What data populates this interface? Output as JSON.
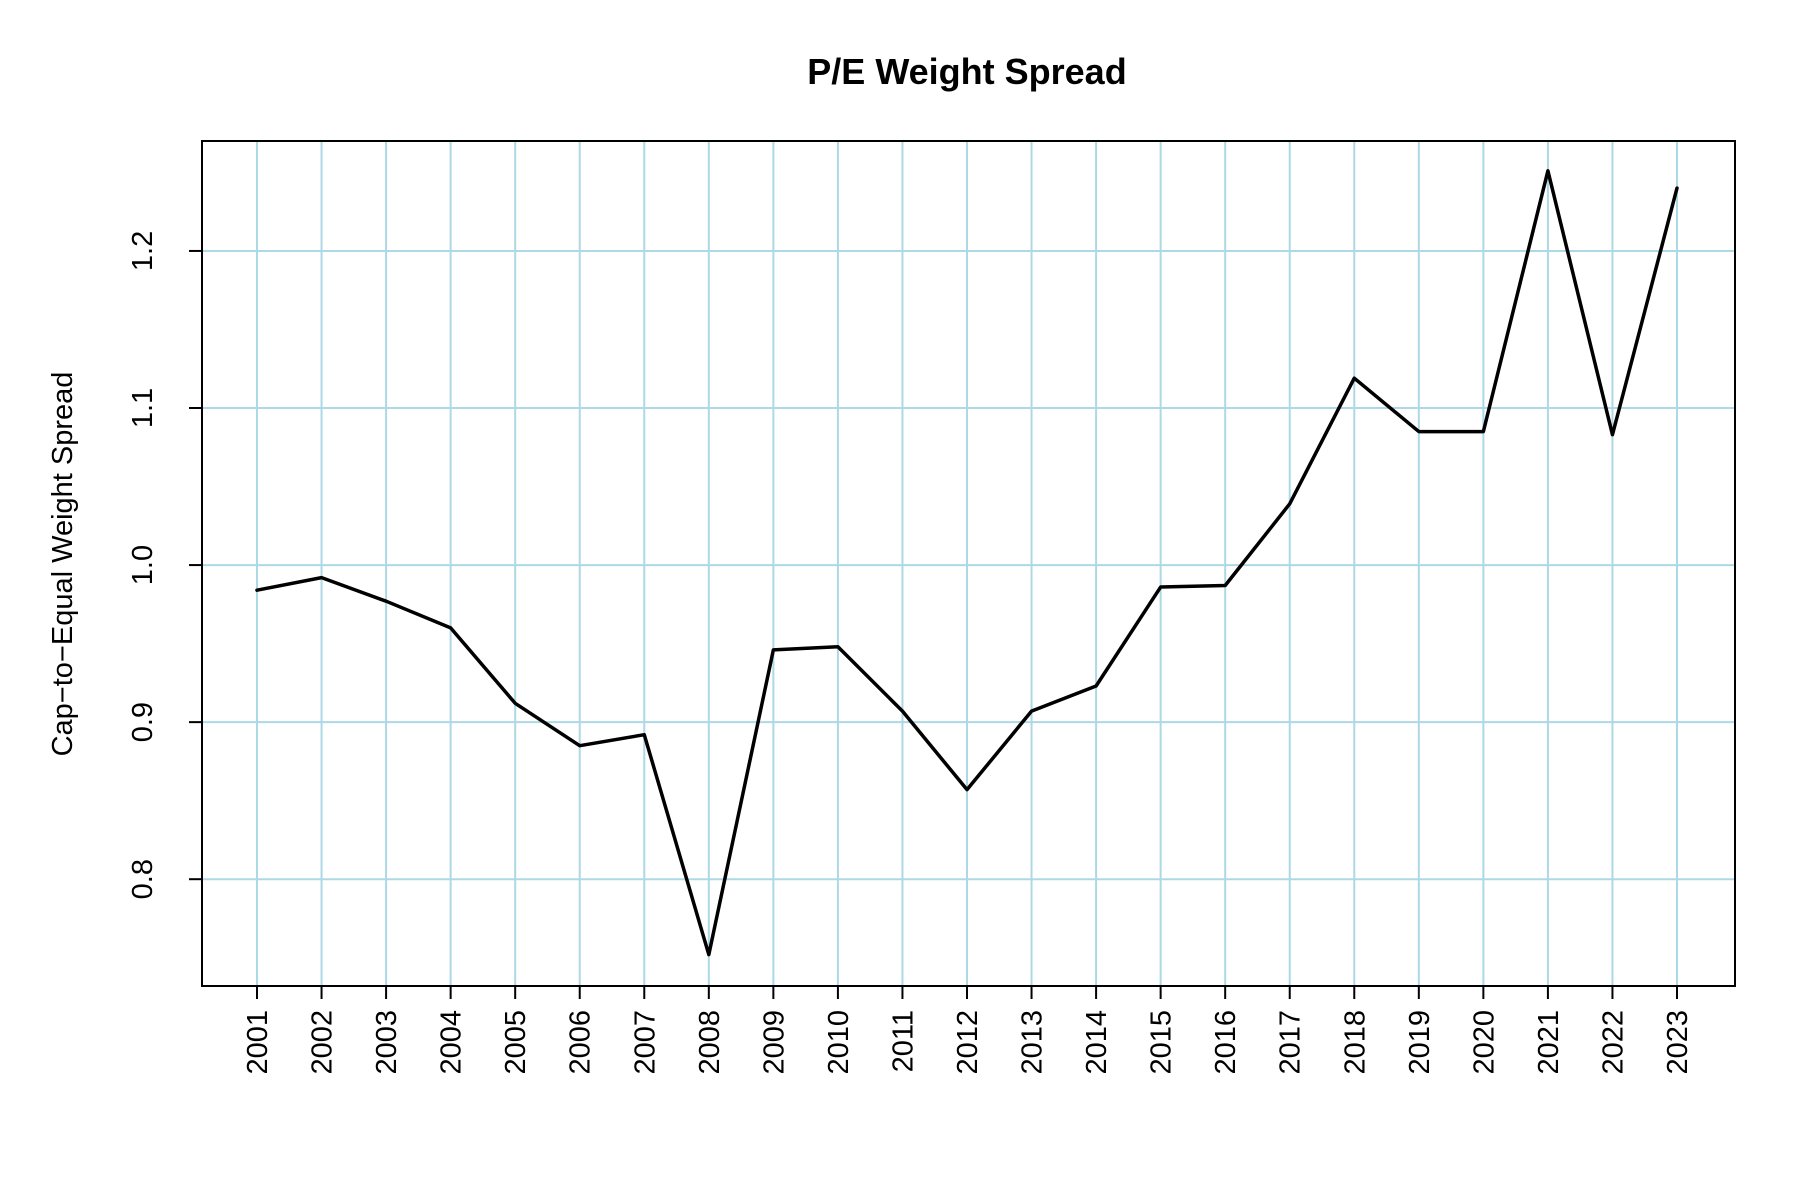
{
  "chart_data": {
    "type": "line",
    "title": "P/E Weight Spread",
    "xlabel": "",
    "ylabel": "Cap−to−Equal Weight Spread",
    "x": [
      "2001",
      "2002",
      "2003",
      "2004",
      "2005",
      "2006",
      "2007",
      "2008",
      "2009",
      "2010",
      "2011",
      "2012",
      "2013",
      "2014",
      "2015",
      "2016",
      "2017",
      "2018",
      "2019",
      "2020",
      "2021",
      "2022",
      "2023"
    ],
    "series": [
      {
        "values": [
          0.984,
          0.992,
          0.977,
          0.96,
          0.912,
          0.885,
          0.892,
          0.752,
          0.946,
          0.948,
          0.907,
          0.857,
          0.907,
          0.923,
          0.986,
          0.987,
          1.039,
          1.119,
          1.085,
          1.085,
          1.251,
          1.083,
          1.24
        ]
      }
    ],
    "ylim": [
      0.732,
      1.27
    ],
    "yticks": [
      0.8,
      0.9,
      1.0,
      1.1,
      1.2
    ],
    "ytick_labels": [
      "0.8",
      "0.9",
      "1.0",
      "1.1",
      "1.2"
    ],
    "grid": true,
    "colors": {
      "line": "#000000",
      "grid": "#add8e6"
    }
  }
}
